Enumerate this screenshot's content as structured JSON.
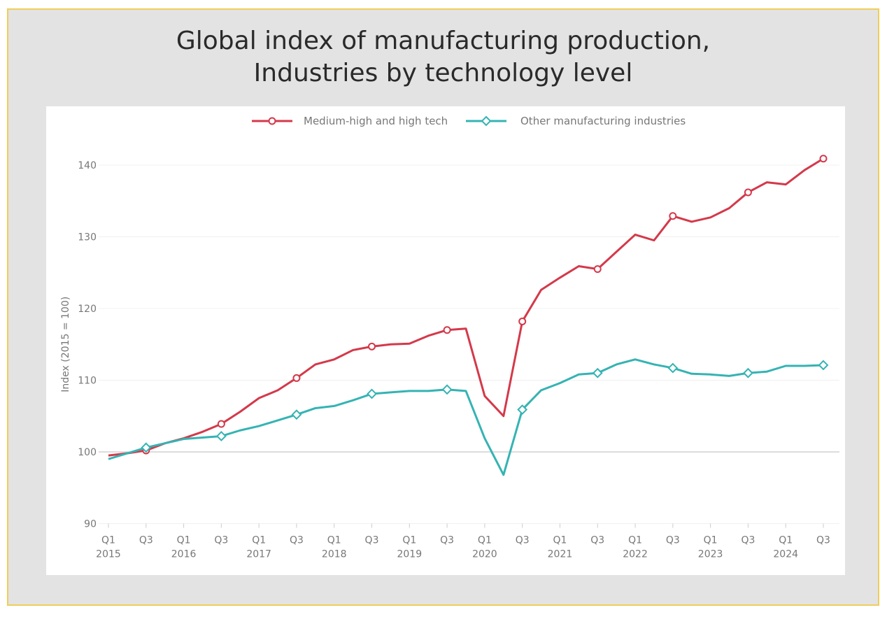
{
  "chart_data": {
    "type": "line",
    "title": [
      "Global index of manufacturing production,",
      "Industries by technology level"
    ],
    "ylabel": "Index (2015 = 100)",
    "xlabel": "",
    "ylim": [
      90,
      145
    ],
    "yticks": [
      90,
      100,
      110,
      120,
      130,
      140
    ],
    "x_tick_labels": [
      [
        "Q1",
        "2015"
      ],
      [
        "Q3",
        ""
      ],
      [
        "Q1",
        "2016"
      ],
      [
        "Q3",
        ""
      ],
      [
        "Q1",
        "2017"
      ],
      [
        "Q3",
        ""
      ],
      [
        "Q1",
        "2018"
      ],
      [
        "Q3",
        ""
      ],
      [
        "Q1",
        "2019"
      ],
      [
        "Q3",
        ""
      ],
      [
        "Q1",
        "2020"
      ],
      [
        "Q3",
        ""
      ],
      [
        "Q1",
        "2021"
      ],
      [
        "Q3",
        ""
      ],
      [
        "Q1",
        "2022"
      ],
      [
        "Q3",
        ""
      ],
      [
        "Q1",
        "2023"
      ],
      [
        "Q3",
        ""
      ],
      [
        "Q1",
        "2024"
      ],
      [
        "Q3",
        ""
      ]
    ],
    "x": [
      "2015Q1",
      "2015Q2",
      "2015Q3",
      "2015Q4",
      "2016Q1",
      "2016Q2",
      "2016Q3",
      "2016Q4",
      "2017Q1",
      "2017Q2",
      "2017Q3",
      "2017Q4",
      "2018Q1",
      "2018Q2",
      "2018Q3",
      "2018Q4",
      "2019Q1",
      "2019Q2",
      "2019Q3",
      "2019Q4",
      "2020Q1",
      "2020Q2",
      "2020Q3",
      "2020Q4",
      "2021Q1",
      "2021Q2",
      "2021Q3",
      "2021Q4",
      "2022Q1",
      "2022Q2",
      "2022Q3",
      "2022Q4",
      "2023Q1",
      "2023Q2",
      "2023Q3",
      "2023Q4",
      "2024Q1",
      "2024Q2",
      "2024Q3"
    ],
    "legend_position": "top-center",
    "grid": true,
    "series": [
      {
        "name": "Medium-high and high tech",
        "color": "#d4394a",
        "marker": "circle",
        "values": [
          99.5,
          99.8,
          100.2,
          101.2,
          101.9,
          102.8,
          103.9,
          105.6,
          107.5,
          108.6,
          110.3,
          112.2,
          112.9,
          114.2,
          114.7,
          115.0,
          115.1,
          116.2,
          117.0,
          117.2,
          107.8,
          105.0,
          118.2,
          122.6,
          124.3,
          125.9,
          125.5,
          127.9,
          130.3,
          129.5,
          132.9,
          132.1,
          132.7,
          134.0,
          136.2,
          137.6,
          137.3,
          139.3,
          140.9
        ]
      },
      {
        "name": "Other manufacturing industries",
        "color": "#35b3b3",
        "marker": "diamond",
        "values": [
          99.0,
          99.8,
          100.6,
          101.2,
          101.8,
          102.0,
          102.2,
          103.0,
          103.6,
          104.4,
          105.2,
          106.1,
          106.4,
          107.2,
          108.1,
          108.3,
          108.5,
          108.5,
          108.7,
          108.5,
          101.9,
          96.8,
          105.9,
          108.6,
          109.6,
          110.8,
          111.0,
          112.2,
          112.9,
          112.2,
          111.7,
          110.9,
          110.8,
          110.6,
          111.0,
          111.2,
          112.0,
          112.0,
          112.1
        ]
      }
    ]
  }
}
